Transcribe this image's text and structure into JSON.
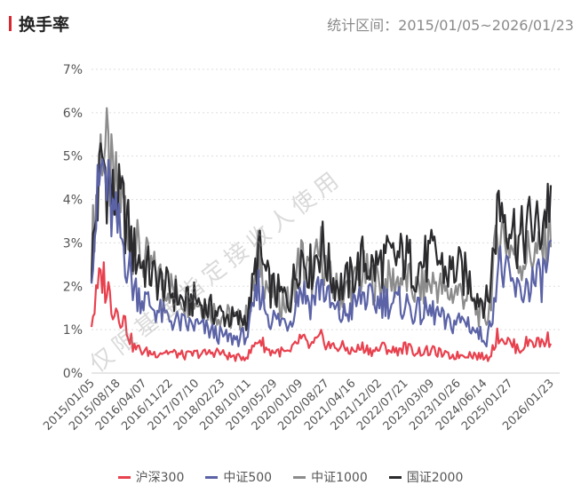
{
  "header": {
    "title": "换手率",
    "range_label": "统计区间：2015/01/05~2026/01/23"
  },
  "watermark": "仅限基金指定接收人使用",
  "chart_data": {
    "type": "line",
    "title": "换手率",
    "xlabel": "",
    "ylabel": "",
    "ylim": [
      0,
      7
    ],
    "yticks": [
      "0%",
      "1%",
      "2%",
      "3%",
      "4%",
      "5%",
      "6%",
      "7%"
    ],
    "xticks": [
      "2015/01/05",
      "2015/08/18",
      "2016/04/07",
      "2016/11/22",
      "2017/07/10",
      "2018/02/23",
      "2018/10/11",
      "2019/05/29",
      "2020/01/09",
      "2020/08/27",
      "2021/04/16",
      "2021/12/02",
      "2022/07/21",
      "2023/03/09",
      "2023/10/26",
      "2024/06/14",
      "2025/01/27",
      "2026/01/23"
    ],
    "x_range": [
      "2015/01/05",
      "2026/01/23"
    ],
    "x_unit": "quarter",
    "legend_position": "bottom",
    "grid": true,
    "series": [
      {
        "name": "中证1000",
        "color": "#8c8c8c",
        "values": [
          2.8,
          5.5,
          4.3,
          4.0,
          3.0,
          2.6,
          2.3,
          2.1,
          1.9,
          1.7,
          1.7,
          1.5,
          1.4,
          1.3,
          1.2,
          1.3,
          2.7,
          1.9,
          1.7,
          1.6,
          2.7,
          2.2,
          2.8,
          2.0,
          1.8,
          2.0,
          2.3,
          2.1,
          2.1,
          2.1,
          2.2,
          1.9,
          2.0,
          2.1,
          1.8,
          1.9,
          1.8,
          1.4,
          1.3,
          3.4,
          3.0,
          2.6,
          2.8,
          2.7,
          3.5
        ]
      },
      {
        "name": "国证2000",
        "color": "#2b2b2e",
        "values": [
          2.5,
          5.0,
          4.0,
          3.8,
          2.8,
          2.5,
          2.2,
          2.0,
          1.8,
          1.6,
          1.7,
          1.5,
          1.4,
          1.3,
          1.2,
          1.3,
          2.8,
          2.0,
          1.8,
          1.7,
          2.8,
          2.4,
          3.0,
          2.2,
          2.0,
          2.2,
          2.6,
          2.4,
          2.6,
          2.6,
          2.7,
          2.4,
          2.6,
          2.7,
          2.3,
          2.4,
          2.2,
          1.8,
          1.6,
          4.0,
          3.6,
          3.0,
          3.4,
          3.3,
          4.2
        ]
      },
      {
        "name": "中证500",
        "color": "#5b63a6",
        "values": [
          2.7,
          4.8,
          3.6,
          3.0,
          2.0,
          1.7,
          1.5,
          1.3,
          1.2,
          1.1,
          1.1,
          1.0,
          0.9,
          0.8,
          0.8,
          0.9,
          2.0,
          1.3,
          1.2,
          1.2,
          2.0,
          1.6,
          2.1,
          1.5,
          1.3,
          1.5,
          1.8,
          1.6,
          1.7,
          1.6,
          1.6,
          1.4,
          1.4,
          1.4,
          1.1,
          1.2,
          1.2,
          0.9,
          0.8,
          2.5,
          2.1,
          1.8,
          2.1,
          2.1,
          2.7
        ]
      },
      {
        "name": "沪深300",
        "color": "#e8414e",
        "values": [
          1.2,
          2.3,
          1.6,
          1.3,
          0.6,
          0.5,
          0.45,
          0.5,
          0.45,
          0.4,
          0.45,
          0.45,
          0.5,
          0.4,
          0.35,
          0.4,
          0.8,
          0.5,
          0.5,
          0.45,
          0.8,
          0.6,
          0.8,
          0.6,
          0.6,
          0.5,
          0.6,
          0.5,
          0.6,
          0.5,
          0.6,
          0.5,
          0.5,
          0.5,
          0.4,
          0.4,
          0.45,
          0.4,
          0.35,
          0.9,
          0.7,
          0.55,
          0.75,
          0.7,
          0.8
        ]
      }
    ],
    "legend": [
      "沪深300",
      "中证500",
      "中证1000",
      "国证2000"
    ]
  }
}
